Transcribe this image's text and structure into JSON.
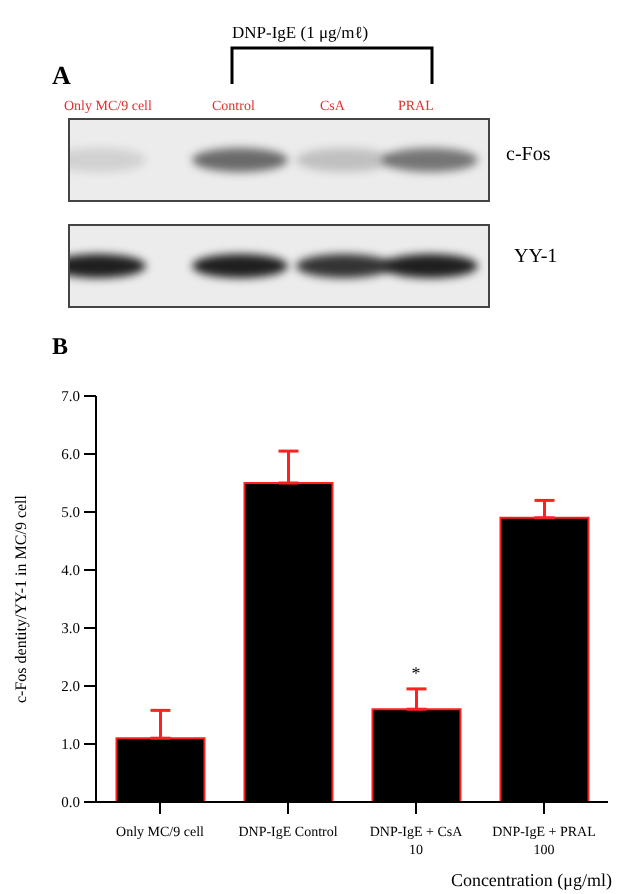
{
  "chart_data": {
    "type": "bar",
    "categories": [
      "Only MC/9 cell",
      "DNP-IgE Control",
      "DNP-IgE + CsA\n10",
      "DNP-IgE + PRAL\n100"
    ],
    "values": [
      1.1,
      5.5,
      1.6,
      4.9
    ],
    "errors": [
      [
        1.1,
        1.58
      ],
      [
        5.5,
        6.05
      ],
      [
        1.6,
        1.95
      ],
      [
        4.9,
        5.2
      ]
    ],
    "color": "#000000",
    "ylim": [
      0,
      7
    ],
    "yticks": [
      {
        "value": 0,
        "label": "0.0"
      },
      {
        "value": 1,
        "label": "1.0"
      },
      {
        "value": 2,
        "label": "2.0"
      },
      {
        "value": 3,
        "label": "3.0"
      },
      {
        "value": 4,
        "label": "4.0"
      },
      {
        "value": 5,
        "label": "5.0"
      },
      {
        "value": 6,
        "label": "6.0"
      },
      {
        "value": 7,
        "label": "7.0"
      }
    ],
    "xlabel": "Concentration (μg/ml)",
    "ylabel": "c-Fos dentity/YY-1 in MC/9 cell",
    "grid": false,
    "legend": false,
    "annotations": [
      "A",
      "DNP-IgE (1 μg/mℓ)",
      "Only MC/9 cell",
      "Control",
      "CsA",
      "PRAL",
      "c-Fos",
      "YY-1",
      "B",
      {
        "text": "*",
        "x": "DNP-IgE + CsA\n10",
        "y": 1.95
      }
    ]
  }
}
